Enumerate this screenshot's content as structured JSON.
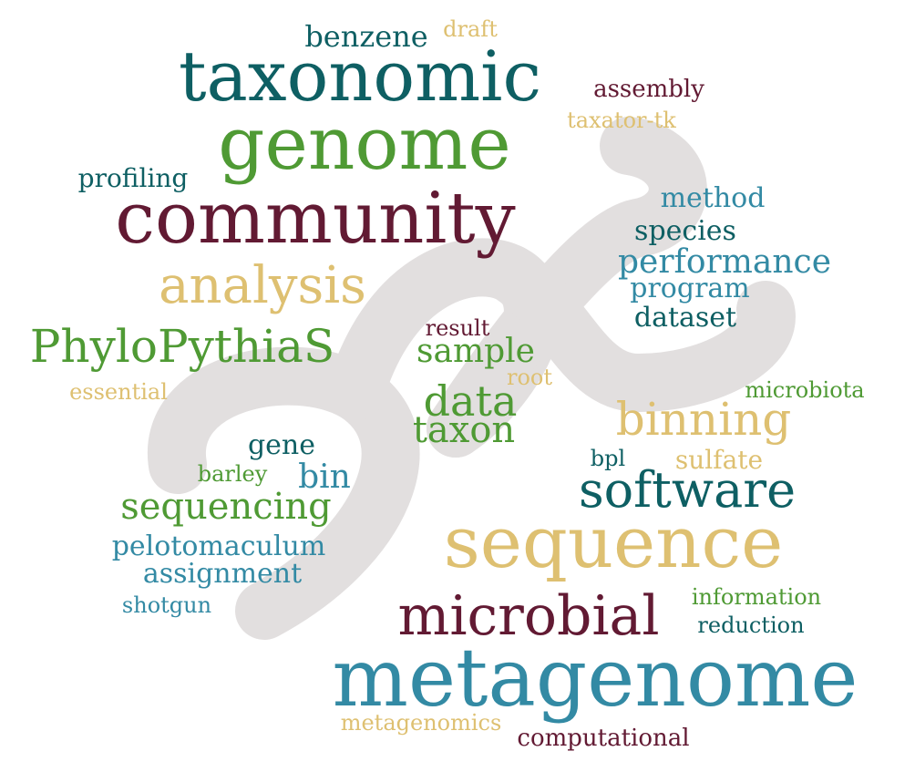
{
  "background_color": "#ffffff",
  "shape_color": "#e2dfdf",
  "palette": {
    "teal": "#0e5f63",
    "green": "#4f9a34",
    "maroon": "#621a33",
    "gold": "#dec071",
    "blue": "#338aa4"
  },
  "words": {
    "benzene": "benzene",
    "draft": "draft",
    "taxonomic": "taxonomic",
    "assembly": "assembly",
    "genome": "genome",
    "taxator_tk": "taxator-tk",
    "profiling": "profiling",
    "community": "community",
    "method": "method",
    "species": "species",
    "performance": "performance",
    "analysis": "analysis",
    "program": "program",
    "dataset": "dataset",
    "result": "result",
    "phylopythias": "PhyloPythiaS",
    "sample": "sample",
    "root": "root",
    "essential": "essential",
    "data": "data",
    "microbiota": "microbiota",
    "binning": "binning",
    "taxon": "taxon",
    "gene": "gene",
    "bpl": "bpl",
    "sulfate": "sulfate",
    "barley": "barley",
    "bin": "bin",
    "software": "software",
    "sequencing": "sequencing",
    "sequence": "sequence",
    "pelotomaculum": "pelotomaculum",
    "assignment": "assignment",
    "information": "information",
    "shotgun": "shotgun",
    "microbial": "microbial",
    "reduction": "reduction",
    "metagenome": "metagenome",
    "metagenomics": "metagenomics",
    "computational": "computational"
  }
}
